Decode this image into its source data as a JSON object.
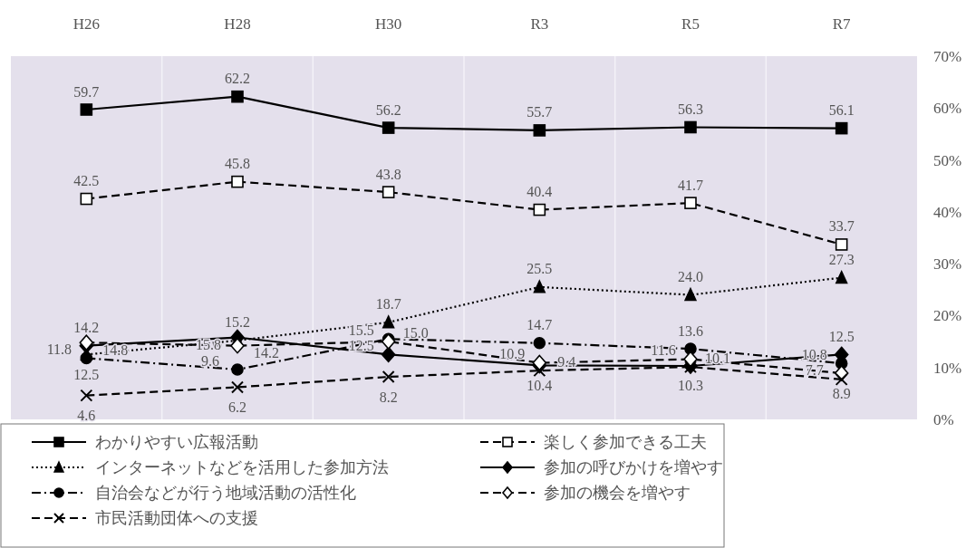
{
  "chart_data": {
    "type": "line",
    "categories": [
      "H26",
      "H28",
      "H30",
      "R3",
      "R5",
      "R7"
    ],
    "ylim": [
      0,
      70
    ],
    "yticks": [
      {
        "value": 0,
        "label": "0%"
      },
      {
        "value": 10,
        "label": "10%"
      },
      {
        "value": 20,
        "label": "20%"
      },
      {
        "value": 30,
        "label": "30%"
      },
      {
        "value": 40,
        "label": "40%"
      },
      {
        "value": 50,
        "label": "50%"
      },
      {
        "value": 60,
        "label": "60%"
      },
      {
        "value": 70,
        "label": "70%"
      }
    ],
    "grid": "x",
    "legend": "bottom",
    "series": [
      {
        "name": "わかりやすい広報活動",
        "color": "#000000",
        "marker": "square",
        "line_style": "solid",
        "values": [
          59.7,
          62.2,
          56.2,
          55.7,
          56.3,
          56.1
        ],
        "value_labels": [
          "59.7",
          "62.2",
          "56.2",
          "55.7",
          "56.3",
          "56.1"
        ]
      },
      {
        "name": "楽しく参加できる工夫",
        "color": "#000000",
        "marker": "square-open",
        "line_style": "dashed",
        "values": [
          42.5,
          45.8,
          43.8,
          40.4,
          41.7,
          33.7
        ],
        "value_labels": [
          "42.5",
          "45.8",
          "43.8",
          "40.4",
          "41.7",
          "33.7"
        ]
      },
      {
        "name": "インターネットなどを活用した参加方法",
        "color": "#000000",
        "marker": "triangle",
        "line_style": "dotted",
        "values": [
          12.5,
          15.2,
          18.7,
          25.5,
          24.0,
          27.3
        ],
        "value_labels": [
          "12.5",
          "15.2",
          "18.7",
          "25.5",
          "24.0",
          "27.3"
        ]
      },
      {
        "name": "参加の呼びかけを増やす",
        "color": "#000000",
        "marker": "diamond",
        "line_style": "solid",
        "values": [
          14.2,
          15.8,
          12.5,
          10.4,
          10.3,
          12.5
        ],
        "value_labels": [
          "14.2",
          "15.8",
          "12.5",
          "10.4",
          "10.3",
          "12.5"
        ]
      },
      {
        "name": "自治会などが行う地域活動の活性化",
        "color": "#000000",
        "marker": "circle",
        "line_style": "dashdot",
        "values": [
          11.8,
          9.6,
          15.5,
          14.7,
          13.6,
          10.8
        ],
        "value_labels": [
          "11.8",
          "9.6",
          "15.5",
          "14.7",
          "13.6",
          "10.8"
        ]
      },
      {
        "name": "参加の機会を増やす",
        "color": "#000000",
        "marker": "diamond-open",
        "line_style": "dashed",
        "values": [
          14.8,
          14.2,
          15.0,
          10.9,
          11.6,
          8.9
        ],
        "value_labels": [
          "14.8",
          "14.2",
          "15.0",
          "10.9",
          "11.6",
          "8.9"
        ]
      },
      {
        "name": "市民活動団体への支援",
        "color": "#000000",
        "marker": "cross",
        "line_style": "dashed",
        "values": [
          4.6,
          6.2,
          8.2,
          9.4,
          10.1,
          7.7
        ],
        "value_labels": [
          "4.6",
          "6.2",
          "8.2",
          "9.4",
          "10.1",
          "7.7"
        ]
      }
    ]
  }
}
